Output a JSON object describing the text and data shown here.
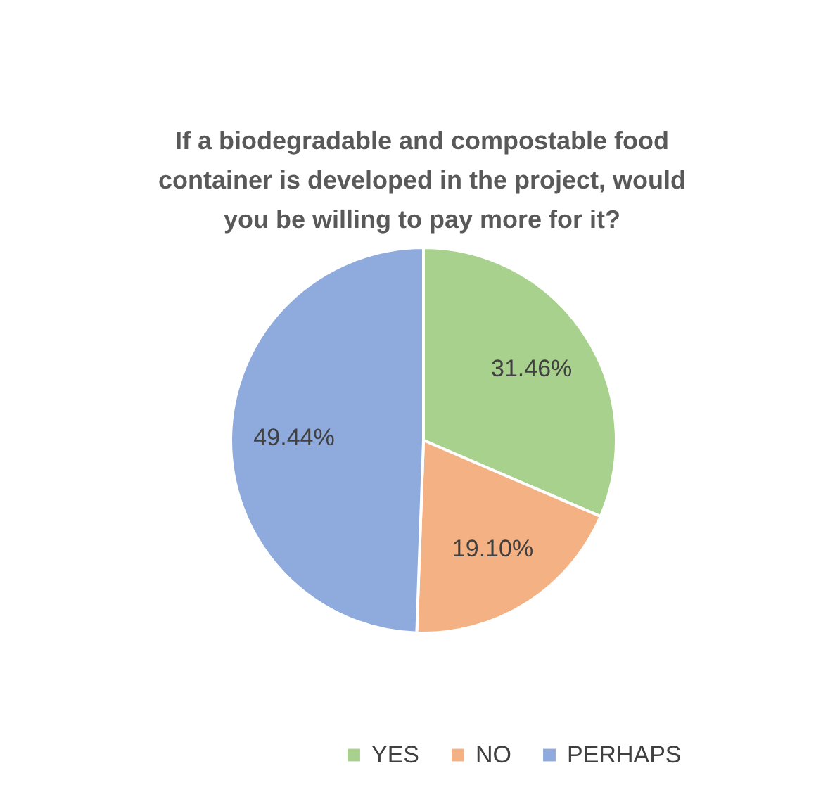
{
  "chart_data": {
    "type": "pie",
    "title": "If a biodegradable and compostable food container is developed in the project, would you be willing to pay more for it?",
    "categories": [
      "YES",
      "NO",
      "PERHAPS"
    ],
    "values": [
      31.46,
      19.1,
      49.44
    ],
    "colors": [
      "#a9d18e",
      "#f4b183",
      "#8faadc"
    ],
    "value_labels": [
      "31.46%",
      "19.10%",
      "49.44%"
    ],
    "legend": "bottom"
  }
}
